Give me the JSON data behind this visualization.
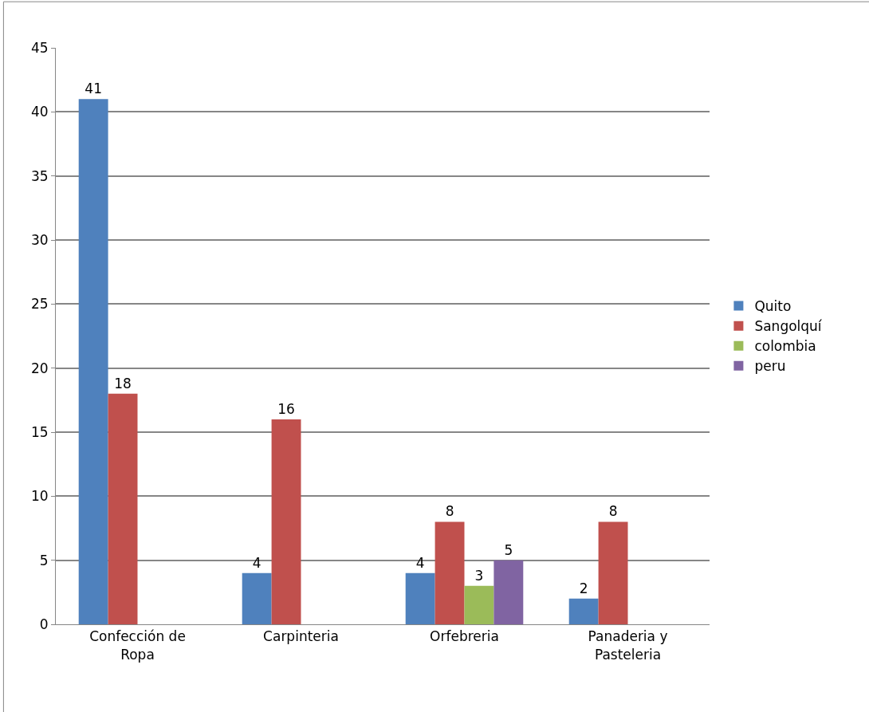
{
  "chart_data": {
    "type": "bar",
    "categories": [
      "Confección de Ropa",
      "Carpinteria",
      "Orfebreria",
      "Panaderia y Pasteleria"
    ],
    "series": [
      {
        "name": "Quito",
        "color": "#4f81bd",
        "values": [
          41,
          4,
          4,
          2
        ]
      },
      {
        "name": "Sangolquí",
        "color": "#c0504d",
        "values": [
          18,
          16,
          8,
          8
        ]
      },
      {
        "name": "colombia",
        "color": "#9bbb59",
        "values": [
          null,
          null,
          3,
          null
        ]
      },
      {
        "name": "peru",
        "color": "#8064a2",
        "values": [
          null,
          null,
          5,
          null
        ]
      }
    ],
    "ylim": [
      0,
      45
    ],
    "yticks": [
      0,
      5,
      10,
      15,
      20,
      25,
      30,
      35,
      40,
      45
    ],
    "grid": "y",
    "legend": "right",
    "data_labels": true
  }
}
